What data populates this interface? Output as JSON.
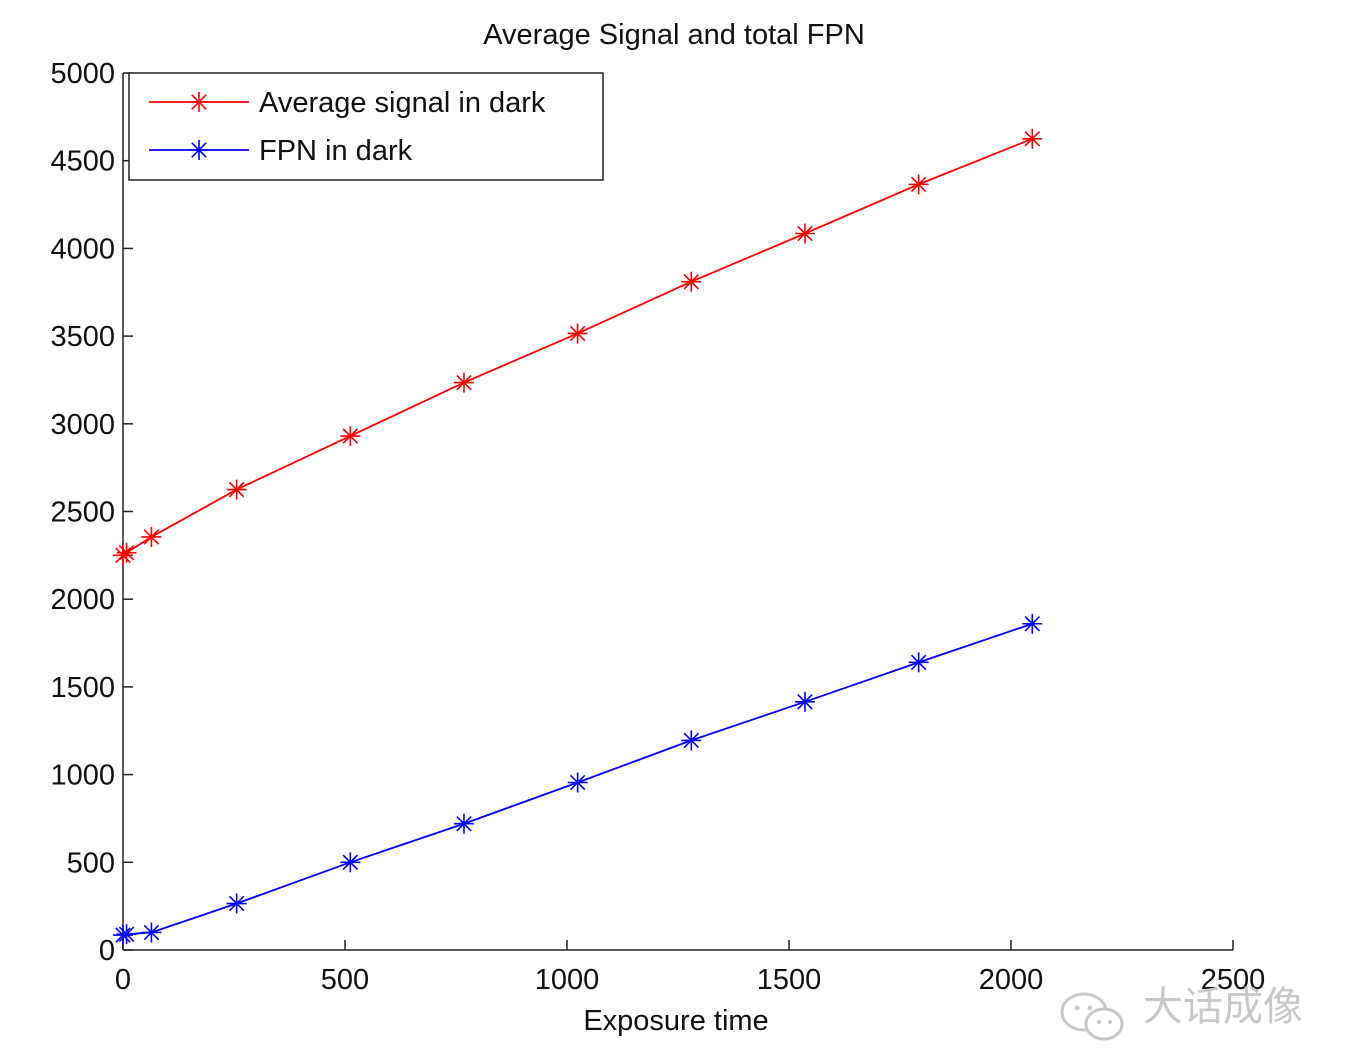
{
  "chart_data": {
    "type": "line",
    "title": "Average Signal and total FPN",
    "xlabel": "Exposure time",
    "ylabel": "",
    "xlim": [
      0,
      2500
    ],
    "ylim": [
      0,
      5000
    ],
    "xticks": [
      0,
      500,
      1000,
      1500,
      2000,
      2500
    ],
    "yticks": [
      0,
      500,
      1000,
      1500,
      2000,
      2500,
      3000,
      3500,
      4000,
      4500,
      5000
    ],
    "grid": false,
    "legend_position": "top-left",
    "marker": "asterisk",
    "series": [
      {
        "name": "Average signal in dark",
        "color": "#ff0000",
        "x": [
          0,
          8,
          64,
          256,
          512,
          768,
          1024,
          1280,
          1536,
          1792,
          2048
        ],
        "y": [
          2250,
          2265,
          2355,
          2625,
          2930,
          3235,
          3515,
          3810,
          4085,
          4365,
          4625
        ]
      },
      {
        "name": "FPN in dark",
        "color": "#0000ff",
        "x": [
          0,
          8,
          64,
          256,
          512,
          768,
          1024,
          1280,
          1536,
          1792,
          2048
        ],
        "y": [
          85,
          90,
          100,
          265,
          500,
          720,
          955,
          1195,
          1415,
          1640,
          1860
        ]
      }
    ]
  },
  "watermark": {
    "text": "大话成像",
    "icon": "wechat-icon"
  }
}
